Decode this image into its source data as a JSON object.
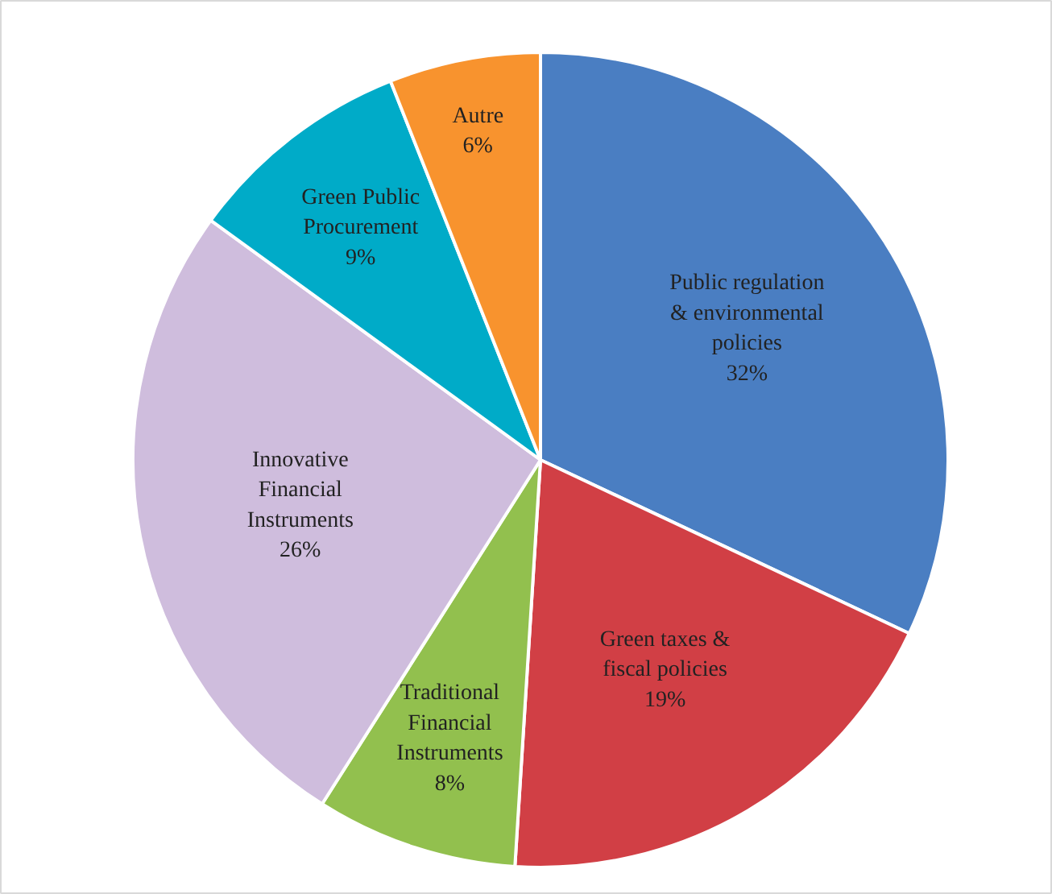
{
  "chart_data": {
    "type": "pie",
    "categories": [
      "Public regulation & environmental policies",
      "Green taxes & fiscal policies",
      "Traditional Financial Instruments",
      "Innovative Financial Instruments",
      "Green Public Procurement",
      "Autre"
    ],
    "values": [
      32,
      19,
      8,
      26,
      9,
      6
    ],
    "value_labels": [
      "32%",
      "19%",
      "8%",
      "26%",
      "9%",
      "6%"
    ],
    "colors": [
      "#4a7ec2",
      "#d13f45",
      "#92c04e",
      "#cfbddd",
      "#00abc8",
      "#f8932e"
    ]
  }
}
